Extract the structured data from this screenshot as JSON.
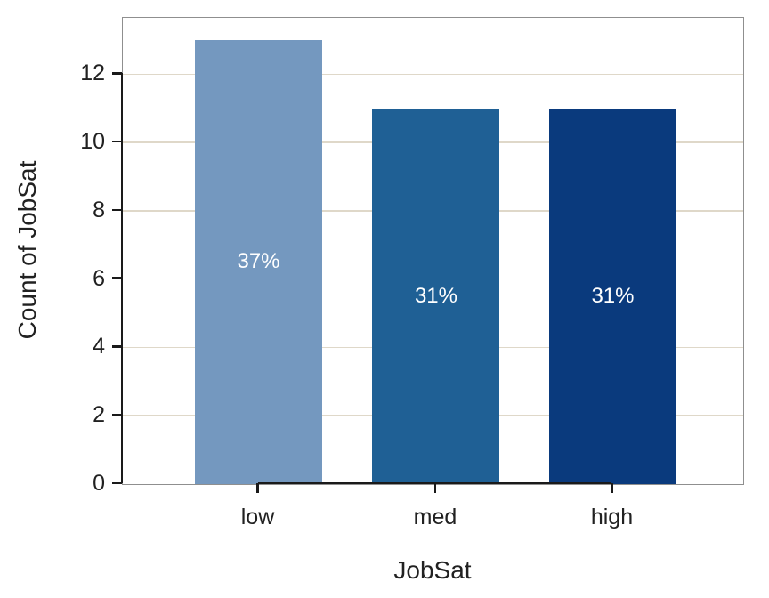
{
  "chart_data": {
    "type": "bar",
    "title": "",
    "xlabel": "JobSat",
    "ylabel": "Count of JobSat",
    "categories": [
      "low",
      "med",
      "high"
    ],
    "values": [
      13,
      11,
      11
    ],
    "bar_labels": [
      "37%",
      "31%",
      "31%"
    ],
    "colors": [
      "#7498BF",
      "#1F6095",
      "#0A3A7D"
    ],
    "ylim": [
      0,
      13.65
    ],
    "yticks": [
      0,
      2,
      4,
      6,
      8,
      10,
      12
    ],
    "grid": "horizontal-major-only",
    "legend": "none",
    "grid_color": "#DFD8C9",
    "axis_color": "#1A1A1A",
    "text_color": "#212121",
    "panel_border_color": "#8F8F8F",
    "bar_label_color": "#FFFFFF",
    "background_color": "#FFFFFF"
  }
}
